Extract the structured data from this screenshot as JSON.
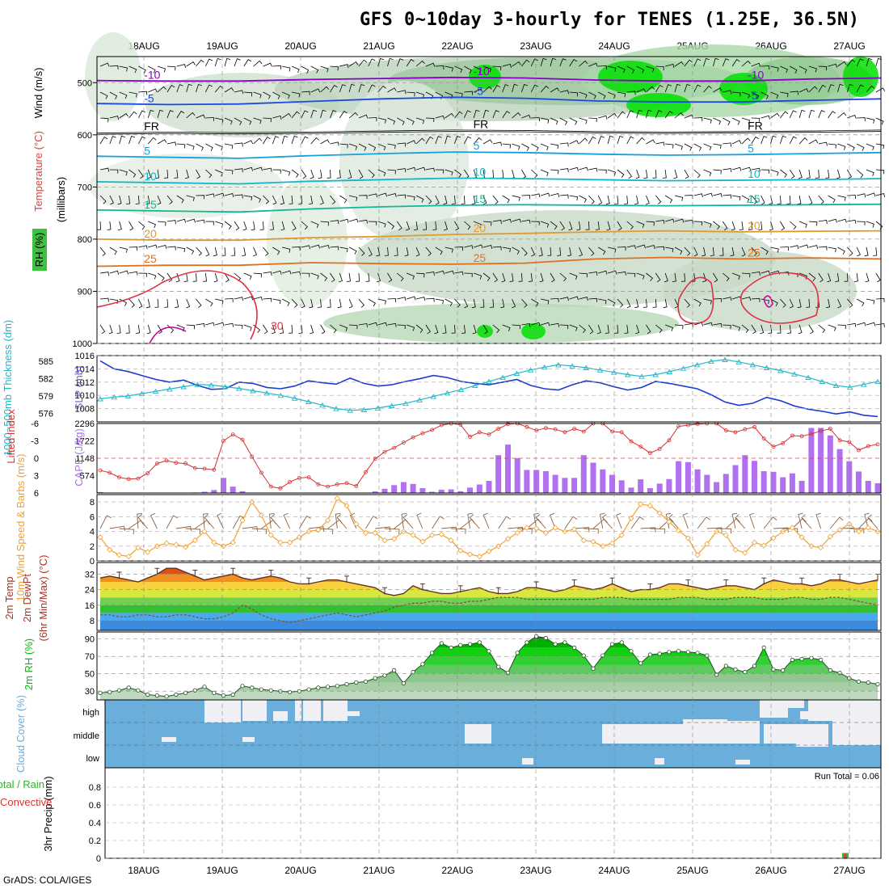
{
  "title": "GFS 0~10day 3-hourly for TENES (1.25E, 36.5N)",
  "footer": "GrADS: COLA/IGES",
  "dates": [
    "18AUG",
    "19AUG",
    "20AUG",
    "21AUG",
    "22AUG",
    "23AUG",
    "24AUG",
    "25AUG",
    "26AUG",
    "27AUG"
  ],
  "colors": {
    "rh_green": "#00e000",
    "temp_line": "#0050ff",
    "slp": "#1a3cd0",
    "thickness": "#20b8c8",
    "lifted": "#d83030",
    "cape": "#b070f0",
    "wind": "#f0a030",
    "cloud": "#6aaedc",
    "rh2m": "#00c000"
  },
  "chart_data": [
    {
      "type": "heatmap",
      "name": "upper_air",
      "panel_labels": [
        "Wind (m/s)",
        "Temperature (°C)",
        "RH (%)"
      ],
      "ylabel": "(millibars)",
      "yticks": [
        500,
        600,
        700,
        800,
        900,
        1000
      ],
      "ylim": [
        1000,
        450
      ],
      "contours": [
        {
          "label": "-10",
          "level_mb": [
            496,
            497,
            497,
            494,
            492,
            490,
            491,
            495,
            497,
            497,
            493,
            491
          ]
        },
        {
          "label": "-5",
          "level_mb": [
            540,
            542,
            541,
            536,
            531,
            528,
            530,
            535,
            537,
            537,
            534,
            531
          ]
        },
        {
          "label": "FR",
          "level_mb": [
            598,
            596,
            597,
            596,
            594,
            592,
            593,
            595,
            596,
            595,
            594,
            592
          ]
        },
        {
          "label": "5",
          "level_mb": [
            641,
            643,
            645,
            640,
            636,
            633,
            634,
            637,
            639,
            638,
            636,
            634
          ]
        },
        {
          "label": "10",
          "level_mb": [
            690,
            692,
            694,
            689,
            686,
            683,
            684,
            686,
            688,
            687,
            686,
            684
          ]
        },
        {
          "label": "15",
          "level_mb": [
            744,
            746,
            748,
            742,
            738,
            735,
            734,
            735,
            736,
            735,
            734,
            733
          ]
        },
        {
          "label": "20",
          "level_mb": [
            800,
            802,
            802,
            797,
            795,
            791,
            789,
            786,
            784,
            786,
            785,
            784
          ]
        },
        {
          "label": "25",
          "level_mb": [
            852,
            850,
            850,
            845,
            847,
            848,
            846,
            838,
            835,
            838,
            836,
            838
          ]
        }
      ],
      "contour_labels": [
        "-10",
        "-5",
        "FR",
        "5",
        "10",
        "15",
        "20",
        "25",
        "30"
      ]
    },
    {
      "type": "line",
      "name": "slp_thickness",
      "panel_labels": [
        "SLP (mb)",
        "1000~500mb Thickness (dm)"
      ],
      "left_ticks": [
        576,
        579,
        582,
        585
      ],
      "right_ticks": [
        1008,
        1010,
        1012,
        1014,
        1016
      ],
      "series": [
        {
          "name": "SLP (mb)",
          "values": [
            1015.2,
            1014.0,
            1013.6,
            1013.0,
            1012.4,
            1012.0,
            1012.3,
            1011.5,
            1010.9,
            1011.0,
            1012.0,
            1011.8,
            1011.2,
            1011.0,
            1011.4,
            1012.2,
            1011.9,
            1011.7,
            1012.6,
            1011.8,
            1011.4,
            1011.6,
            1012.1,
            1012.5,
            1013.0,
            1012.7,
            1012.1,
            1011.8,
            1011.6,
            1012.0,
            1012.4,
            1011.5,
            1011.0,
            1010.8,
            1011.6,
            1012.2,
            1011.9,
            1011.3,
            1010.8,
            1011.2,
            1012.1,
            1011.8,
            1011.4,
            1011.0,
            1010.1,
            1009.0,
            1008.5,
            1008.8,
            1009.7,
            1009.2,
            1008.4,
            1007.9,
            1007.6,
            1007.2,
            1007.5,
            1007.0,
            1006.8
          ]
        },
        {
          "name": "1000~500mb Thickness (dm)",
          "values": [
            578.5,
            578.8,
            579.0,
            579.4,
            579.8,
            580.2,
            580.6,
            581.0,
            580.9,
            580.6,
            580.3,
            579.9,
            579.5,
            579.1,
            578.6,
            578.0,
            577.4,
            576.8,
            576.5,
            576.6,
            576.9,
            577.3,
            577.7,
            578.3,
            578.9,
            579.5,
            580.1,
            580.8,
            581.5,
            582.2,
            582.9,
            583.5,
            584.0,
            584.4,
            584.2,
            583.9,
            583.5,
            583.1,
            582.7,
            582.4,
            582.7,
            583.2,
            583.8,
            584.4,
            585.0,
            585.3,
            584.9,
            584.4,
            583.9,
            583.4,
            582.8,
            582.2,
            581.5,
            580.8,
            580.5,
            581.0,
            581.5
          ]
        }
      ]
    },
    {
      "type": "bar",
      "name": "cape_lifted_index",
      "panel_labels": [
        "CAPE (J/kg)",
        "Lifted Index"
      ],
      "cape_ticks": [
        574,
        1148,
        1722,
        2296
      ],
      "lifted_ticks": [
        -6,
        -3,
        0,
        3,
        6
      ],
      "series": [
        {
          "name": "CAPE (J/kg)",
          "values": [
            30,
            0,
            0,
            0,
            0,
            0,
            0,
            0,
            0,
            0,
            20,
            40,
            100,
            500,
            210,
            60,
            0,
            0,
            0,
            0,
            0,
            0,
            0,
            0,
            0,
            0,
            0,
            0,
            0,
            50,
            140,
            260,
            360,
            300,
            160,
            40,
            110,
            120,
            60,
            180,
            280,
            400,
            1250,
            1600,
            1150,
            760,
            760,
            720,
            600,
            500,
            500,
            1250,
            1000,
            780,
            600,
            420,
            180,
            450,
            160,
            310,
            460,
            1050,
            1020,
            780,
            600,
            360,
            630,
            920,
            1250,
            1060,
            720,
            700,
            520,
            650,
            400,
            2150,
            2150,
            1900,
            1450,
            1050,
            710,
            400,
            320
          ]
        },
        {
          "name": "Lifted Index",
          "values": [
            2.1,
            2.5,
            3.3,
            3.6,
            3.5,
            2.6,
            0.9,
            0.4,
            0.8,
            0.9,
            1.7,
            1.8,
            2.0,
            -3.0,
            -4.1,
            -3.2,
            -0.3,
            2.5,
            4.9,
            5.2,
            4.1,
            3.4,
            3.3,
            4.5,
            4.9,
            4.5,
            4.3,
            4.8,
            2.4,
            0.1,
            -1.1,
            -1.8,
            -2.7,
            -3.6,
            -4.3,
            -4.9,
            -5.7,
            -6.0,
            -5.8,
            -3.7,
            -4.5,
            -4.1,
            -5.1,
            -5.9,
            -6.0,
            -5.4,
            -4.8,
            -5.2,
            -5.0,
            -4.5,
            -5.1,
            -4.6,
            -6.0,
            -6.0,
            -4.6,
            -4.5,
            -2.9,
            -2.0,
            -0.9,
            -1.6,
            -3.1,
            -5.5,
            -5.7,
            -5.9,
            -6.0,
            -6.0,
            -4.8,
            -4.5,
            -5.0,
            -5.4,
            -3.4,
            -2.0,
            -2.6,
            -3.9,
            -3.8,
            -4.2,
            -4.7,
            -5.1,
            -3.1,
            -2.8,
            -1.4,
            -2.1,
            -2.4
          ]
        }
      ]
    },
    {
      "type": "line",
      "name": "wind10m",
      "panel_labels": [
        "10m Wind Speed & Barbs (m/s)"
      ],
      "yticks": [
        0,
        2,
        4,
        6,
        8
      ],
      "ylim": [
        0,
        9
      ],
      "series": [
        {
          "name": "10m Wind Speed",
          "values": [
            3.2,
            1.5,
            0.8,
            0.6,
            1.8,
            1.2,
            2.0,
            2.4,
            2.2,
            1.9,
            2.8,
            4.0,
            2.5,
            2.0,
            2.5,
            5.5,
            8.0,
            6.2,
            3.5,
            2.5,
            2.5,
            3.2,
            4.0,
            4.2,
            5.5,
            8.5,
            7.5,
            5.0,
            3.8,
            3.8,
            2.8,
            3.0,
            4.0,
            3.5,
            2.6,
            3.5,
            3.6,
            2.8,
            1.4,
            0.9,
            0.6,
            1.3,
            2.0,
            3.0,
            3.8,
            4.5,
            4.4,
            3.8,
            4.5,
            4.0,
            4.3,
            2.8,
            2.6,
            2.0,
            2.4,
            3.5,
            5.8,
            7.7,
            7.5,
            6.5,
            5.3,
            4.1,
            3.1,
            0.8,
            2.3,
            4.0,
            3.5,
            1.5,
            1.1,
            2.5,
            2.1,
            3.1,
            4.0,
            4.5,
            3.2,
            2.0,
            1.8,
            3.3,
            4.2,
            5.0,
            4.0,
            4.5,
            4.0
          ]
        }
      ]
    },
    {
      "type": "area",
      "name": "temp2m",
      "panel_labels": [
        "2m Temp",
        "2m DewPt",
        "(6hr Min/Max) (°C)"
      ],
      "yticks": [
        8,
        16,
        24,
        32
      ],
      "ylim": [
        3,
        38
      ],
      "series": [
        {
          "name": "2m Temp",
          "values": [
            30,
            31,
            30,
            29,
            28,
            30,
            32,
            35,
            35,
            33,
            31,
            29,
            30,
            31,
            32,
            30,
            29,
            30,
            31,
            30,
            28,
            27,
            27,
            28,
            29,
            29,
            28,
            27,
            26,
            25,
            22,
            21,
            22,
            26,
            24,
            23,
            22,
            22,
            23,
            24,
            25,
            23,
            22,
            22,
            23,
            25,
            25,
            24,
            23,
            24,
            26,
            25,
            24,
            25,
            27,
            25,
            23,
            24,
            24,
            25,
            27,
            27,
            26,
            25,
            24,
            25,
            26,
            26,
            25,
            24,
            27,
            29,
            28,
            27,
            27,
            26,
            27,
            29,
            29,
            28,
            27,
            28,
            29
          ]
        },
        {
          "name": "2m DewPt",
          "values": [
            11,
            11,
            10,
            10,
            11,
            11,
            10,
            10,
            11,
            11,
            10,
            9,
            9,
            10,
            12,
            16,
            14,
            11,
            9,
            8,
            7,
            8,
            9,
            10,
            11,
            12,
            11,
            10,
            11,
            12,
            13,
            15,
            16,
            17,
            17,
            18,
            18,
            17,
            17,
            18,
            18,
            19,
            20,
            20,
            20,
            19,
            19,
            19,
            19,
            19,
            19,
            19,
            19,
            20,
            20,
            20,
            19,
            19,
            19,
            19,
            19,
            20,
            20,
            20,
            19,
            19,
            19,
            20,
            20,
            20,
            19,
            19,
            19,
            20,
            20,
            19,
            19,
            20,
            20,
            19,
            18,
            17,
            16
          ]
        }
      ]
    },
    {
      "type": "area",
      "name": "rh2m",
      "panel_labels": [
        "2m RH (%)"
      ],
      "yticks": [
        30,
        50,
        70,
        90
      ],
      "ylim": [
        20,
        98
      ],
      "series": [
        {
          "name": "2m RH",
          "values": [
            28,
            29,
            31,
            34,
            31,
            26,
            25,
            24,
            26,
            28,
            31,
            35,
            28,
            25,
            26,
            36,
            34,
            32,
            31,
            30,
            29,
            30,
            32,
            34,
            35,
            36,
            38,
            40,
            41,
            45,
            48,
            54,
            39,
            52,
            61,
            74,
            85,
            80,
            83,
            84,
            86,
            76,
            58,
            51,
            74,
            86,
            93,
            91,
            84,
            86,
            80,
            71,
            56,
            71,
            84,
            86,
            76,
            62,
            72,
            73,
            75,
            76,
            75,
            74,
            71,
            49,
            59,
            55,
            52,
            59,
            80,
            55,
            54,
            66,
            67,
            68,
            66,
            54,
            51,
            45,
            41,
            40,
            38
          ]
        }
      ]
    },
    {
      "type": "table",
      "name": "cloud_cover",
      "panel_labels": [
        "Cloud Cover (%)"
      ],
      "levels": [
        "high",
        "middle",
        "low"
      ]
    },
    {
      "type": "bar",
      "name": "precip",
      "panel_labels": [
        "3hr Precip (mm)",
        "Total / Rain",
        "Convective"
      ],
      "yticks": [
        0,
        0.2,
        0.4,
        0.6,
        0.8
      ],
      "ylim": [
        0,
        1.0
      ],
      "run_total_label": "Run Total = 0.06",
      "series": [
        {
          "name": "Total / Rain",
          "values": [
            {
              "t": 76,
              "v": 0.06
            }
          ]
        },
        {
          "name": "Convective",
          "values": [
            {
              "t": 76,
              "v": 0.05
            }
          ]
        }
      ]
    }
  ]
}
